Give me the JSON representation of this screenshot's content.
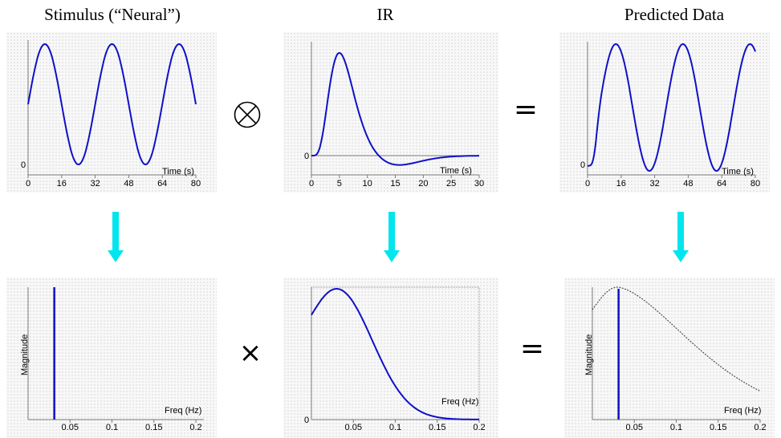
{
  "headings": {
    "stimulus": "Stimulus (“Neural”)",
    "ir": "IR",
    "predicted": "Predicted Data"
  },
  "operators": {
    "convolve": "⊗",
    "equals_top": "=",
    "times": "×",
    "equals_bottom": "="
  },
  "arrow_color": "#00e5ee",
  "curve_color": "#1010c8",
  "panels": {
    "stimulus_time": {
      "xlabel": "Time (s)",
      "ylabel": "",
      "y_tick": "0",
      "x_ticks": [
        "0",
        "16",
        "32",
        "48",
        "64",
        "80"
      ]
    },
    "ir_time": {
      "xlabel": "Time (s)",
      "ylabel": "",
      "y_tick": "0",
      "x_ticks": [
        "0",
        "5",
        "10",
        "15",
        "20",
        "25",
        "30"
      ]
    },
    "predicted_time": {
      "xlabel": "Time (s)",
      "ylabel": "",
      "y_tick": "0",
      "x_ticks": [
        "0",
        "16",
        "32",
        "48",
        "64",
        "80"
      ]
    },
    "stimulus_freq": {
      "xlabel": "Freq (Hz)",
      "ylabel": "Magnitude",
      "y_tick": "",
      "x_ticks": [
        "0.05",
        "0.1",
        "0.15",
        "0.2"
      ]
    },
    "ir_freq": {
      "xlabel": "Freq (Hz)",
      "ylabel": "",
      "y_tick": "0",
      "x_ticks": [
        "0.05",
        "0.1",
        "0.15",
        "0.2"
      ]
    },
    "predicted_freq": {
      "xlabel": "Freq (Hz)",
      "ylabel": "Magnitude",
      "y_tick": "",
      "x_ticks": [
        "0.05",
        "0.1",
        "0.15",
        "0.2"
      ]
    }
  },
  "chart_data": [
    {
      "type": "line",
      "x_range": [
        0,
        80
      ],
      "x_ticks": [
        0,
        16,
        32,
        48,
        64,
        80
      ],
      "signal": "sinusoid",
      "period": 32,
      "y_min": 0
    },
    {
      "type": "line",
      "x_range": [
        0,
        30
      ],
      "x_ticks": [
        0,
        5,
        10,
        15,
        20,
        25,
        30
      ],
      "signal": "gamma-hrf",
      "peak_at": 5,
      "undershoot_min_at": 15
    },
    {
      "type": "line",
      "x_range": [
        0,
        80
      ],
      "x_ticks": [
        0,
        16,
        32,
        48,
        64,
        80
      ],
      "signal": "sinusoid-convolved",
      "period": 32
    },
    {
      "type": "line",
      "x_range": [
        0,
        0.2
      ],
      "x_ticks": [
        0.05,
        0.1,
        0.15,
        0.2
      ],
      "spike_at": 0.03125
    },
    {
      "type": "line",
      "x_range": [
        0,
        0.2
      ],
      "x_ticks": [
        0.05,
        0.1,
        0.15,
        0.2
      ],
      "peak_at": 0.03
    },
    {
      "type": "line",
      "x_range": [
        0,
        0.2
      ],
      "x_ticks": [
        0.05,
        0.1,
        0.15,
        0.2
      ],
      "spike_at": 0.03125,
      "envelope_peak_at": 0.03
    }
  ]
}
